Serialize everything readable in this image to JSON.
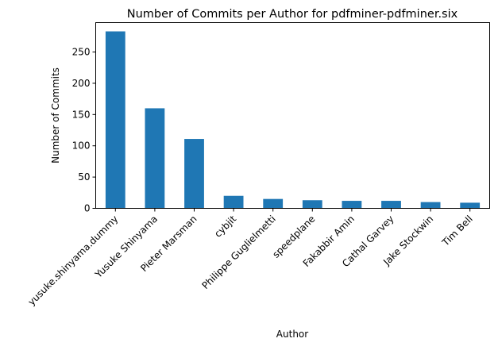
{
  "chart_data": {
    "type": "bar",
    "title": "Number of Commits per Author for pdfminer-pdfminer.six",
    "xlabel": "Author",
    "ylabel": "Number of Commits",
    "categories": [
      "yusuke.shinyama.dummy",
      "Yusuke Shinyama",
      "Pieter Marsman",
      "cybjit",
      "Philippe Guglielmetti",
      "speedplane",
      "Fakabbir Amin",
      "Cathal Garvey",
      "Jake Stockwin",
      "Tim Bell"
    ],
    "values": [
      283,
      160,
      111,
      20,
      15,
      13,
      12,
      12,
      10,
      9
    ],
    "yticks": [
      0,
      50,
      100,
      150,
      200,
      250
    ],
    "ylim": [
      0,
      297
    ],
    "grid": false,
    "bar_color": "#1f77b4"
  }
}
